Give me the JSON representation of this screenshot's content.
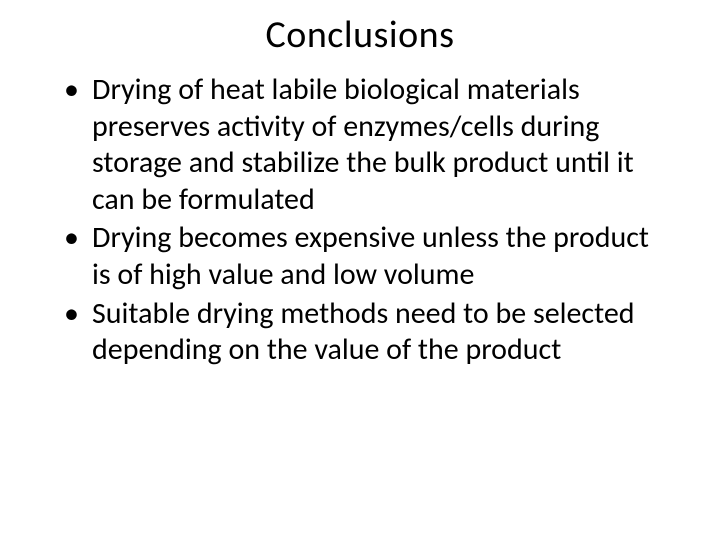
{
  "slide": {
    "title": "Conclusions",
    "title_fontsize": 38,
    "title_color": "#000000",
    "body_fontsize": 30,
    "body_color": "#000000",
    "background_color": "#ffffff",
    "bullets": [
      "Drying of heat labile biological materials preserves activity of enzymes/cells during storage and stabilize the bulk product until it can be formulated",
      "Drying becomes expensive unless the product is of high value and low volume",
      "Suitable drying methods need to be selected depending on the value of the product"
    ]
  }
}
